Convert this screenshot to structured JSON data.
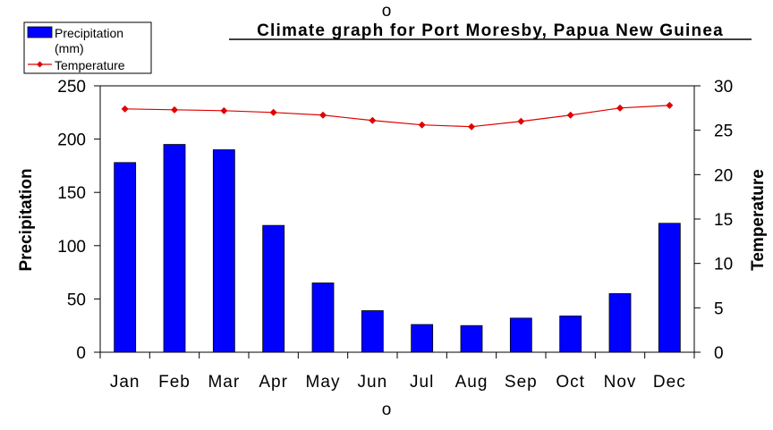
{
  "chart_data": {
    "type": "bar",
    "title": "Climate graph for Port Moresby, Papua New Guinea",
    "categories": [
      "Jan",
      "Feb",
      "Mar",
      "Apr",
      "May",
      "Jun",
      "Jul",
      "Aug",
      "Sep",
      "Oct",
      "Nov",
      "Dec"
    ],
    "series": [
      {
        "name": "Precipitation (mm)",
        "type": "bar",
        "axis": "left",
        "color": "#0000ff",
        "values": [
          178,
          195,
          190,
          119,
          65,
          39,
          26,
          25,
          32,
          34,
          55,
          121
        ]
      },
      {
        "name": "Temperature",
        "type": "line",
        "axis": "right",
        "color": "#e00000",
        "values": [
          27.4,
          27.3,
          27.2,
          27.0,
          26.7,
          26.1,
          25.6,
          25.4,
          26.0,
          26.7,
          27.5,
          27.8
        ]
      }
    ],
    "ylabel": "Precipitation",
    "ylim": [
      0,
      250
    ],
    "yticks": [
      0,
      50,
      100,
      150,
      200,
      250
    ],
    "y2label": "Temperature",
    "y2lim": [
      0,
      30
    ],
    "y2ticks": [
      0,
      5,
      10,
      15,
      20,
      25,
      30
    ],
    "legend": {
      "placement": "top-left",
      "entries": [
        {
          "label_line1": "Precipitation",
          "label_line2": "(mm)",
          "marker": "bar"
        },
        {
          "label": "Temperature",
          "marker": "line"
        }
      ]
    },
    "grid": false,
    "annotations": [
      "o",
      "o"
    ]
  }
}
